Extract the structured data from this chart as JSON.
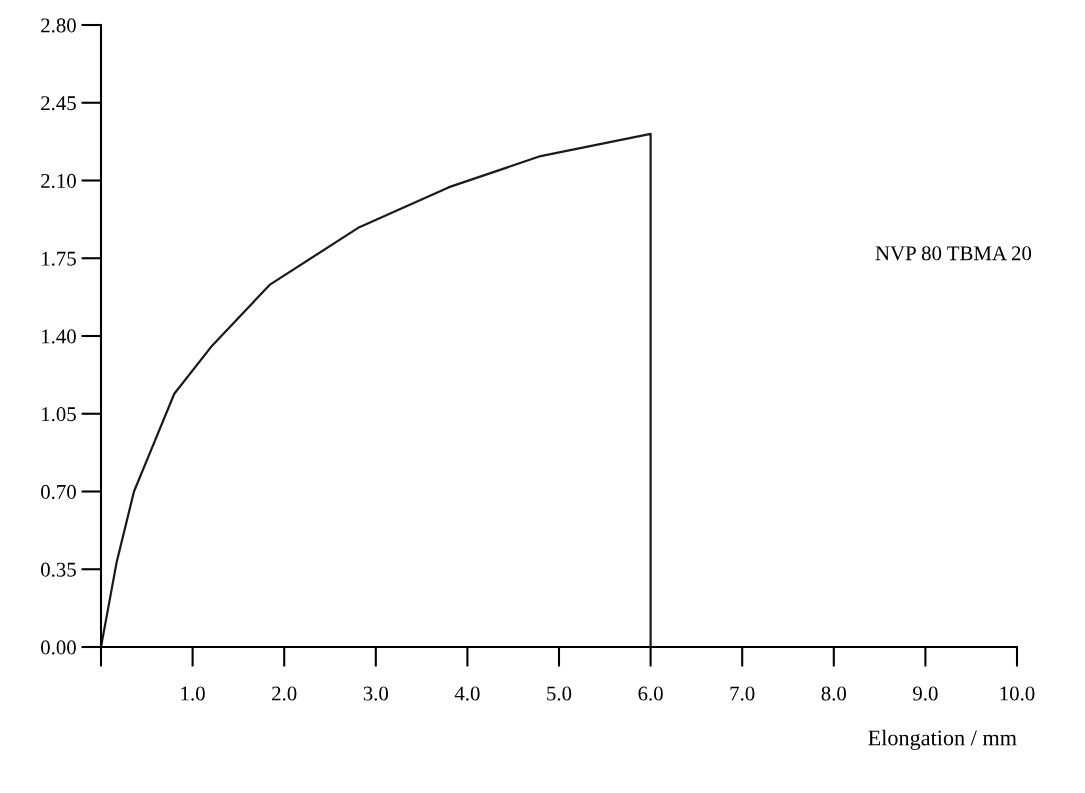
{
  "chart_data": {
    "type": "line",
    "xlabel": "Elongation / mm",
    "series": [
      {
        "name": "NVP 80 TBMA 20",
        "color": "#1a1a1a",
        "x": [
          0,
          0.17,
          0.36,
          0.56,
          0.8,
          1.2,
          1.84,
          2.82,
          3.8,
          4.8,
          6.0,
          6.0
        ],
        "values": [
          0,
          0.38,
          0.7,
          0.9,
          1.14,
          1.35,
          1.63,
          1.89,
          2.07,
          2.21,
          2.31,
          0
        ]
      }
    ],
    "xlim": [
      0,
      10
    ],
    "xticks": [
      {
        "value": 0,
        "label": null
      },
      {
        "value": 1,
        "label": "1.0"
      },
      {
        "value": 2,
        "label": "2.0"
      },
      {
        "value": 3,
        "label": "3.0"
      },
      {
        "value": 4,
        "label": "4.0"
      },
      {
        "value": 5,
        "label": "5.0"
      },
      {
        "value": 6,
        "label": "6.0"
      },
      {
        "value": 7,
        "label": "7.0"
      },
      {
        "value": 8,
        "label": "8.0"
      },
      {
        "value": 9,
        "label": "9.0"
      },
      {
        "value": 10,
        "label": "10.0"
      }
    ],
    "ylim": [
      0,
      2.8
    ],
    "yticks": [
      {
        "value": 0,
        "label": "0.00"
      },
      {
        "value": 0.35,
        "label": "0.35"
      },
      {
        "value": 0.7,
        "label": "0.70"
      },
      {
        "value": 1.05,
        "label": "1.05"
      },
      {
        "value": 1.4,
        "label": "1.40"
      },
      {
        "value": 1.75,
        "label": "1.75"
      },
      {
        "value": 2.1,
        "label": "2.10"
      },
      {
        "value": 2.45,
        "label": "2.45"
      },
      {
        "value": 2.8,
        "label": "2.80"
      }
    ],
    "grid": false,
    "legend": false,
    "marker": "none",
    "line_style": "solid"
  }
}
